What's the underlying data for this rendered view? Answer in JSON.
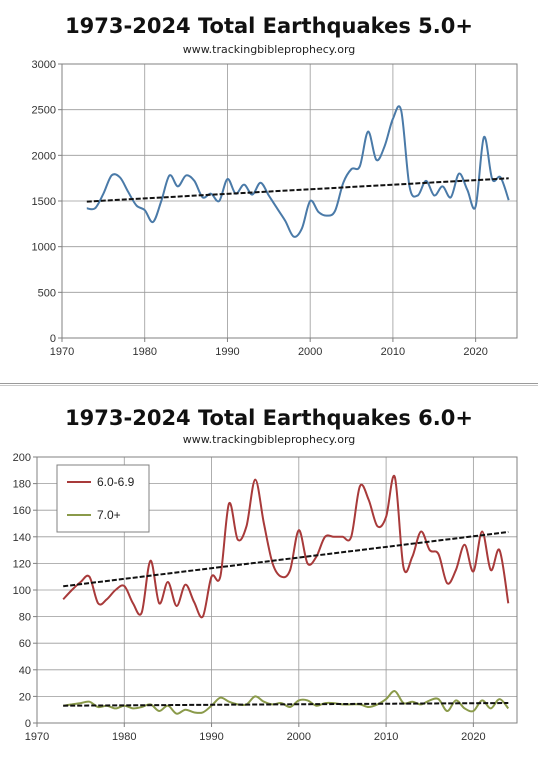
{
  "chart_data": [
    {
      "type": "line",
      "title": "1973-2024 Total Earthquakes 5.0+",
      "subtitle": "www.trackingbibleprophecy.org",
      "xlabel": "",
      "ylabel": "",
      "xlim": [
        1970,
        2025
      ],
      "ylim": [
        0,
        3000
      ],
      "xticks": [
        1970,
        1980,
        1990,
        2000,
        2010,
        2020
      ],
      "yticks": [
        0,
        500,
        1000,
        1500,
        2000,
        2500,
        3000
      ],
      "grid": true,
      "x": [
        1973,
        1974,
        1975,
        1976,
        1977,
        1978,
        1979,
        1980,
        1981,
        1982,
        1983,
        1984,
        1985,
        1986,
        1987,
        1988,
        1989,
        1990,
        1991,
        1992,
        1993,
        1994,
        1995,
        1996,
        1997,
        1998,
        1999,
        2000,
        2001,
        2002,
        2003,
        2004,
        2005,
        2006,
        2007,
        2008,
        2009,
        2010,
        2011,
        2012,
        2013,
        2014,
        2015,
        2016,
        2017,
        2018,
        2019,
        2020,
        2021,
        2022,
        2023,
        2024
      ],
      "series": [
        {
          "name": "",
          "color": "#4a7aa8",
          "values": [
            1420,
            1420,
            1580,
            1780,
            1760,
            1600,
            1450,
            1400,
            1270,
            1500,
            1780,
            1660,
            1780,
            1720,
            1540,
            1580,
            1500,
            1740,
            1580,
            1680,
            1570,
            1700,
            1560,
            1420,
            1280,
            1110,
            1200,
            1500,
            1380,
            1340,
            1390,
            1700,
            1850,
            1880,
            2260,
            1950,
            2100,
            2400,
            2490,
            1660,
            1560,
            1720,
            1560,
            1660,
            1540,
            1800,
            1620,
            1440,
            2200,
            1740,
            1760,
            1510
          ]
        },
        {
          "name": "",
          "color": "#111111",
          "dashed": true,
          "values": [
            1493,
            1498,
            1503,
            1508,
            1513,
            1518,
            1523,
            1528,
            1533,
            1538,
            1543,
            1548,
            1553,
            1558,
            1563,
            1568,
            1573,
            1578,
            1583,
            1588,
            1593,
            1598,
            1603,
            1608,
            1613,
            1618,
            1623,
            1628,
            1633,
            1638,
            1643,
            1648,
            1653,
            1658,
            1663,
            1668,
            1673,
            1678,
            1683,
            1688,
            1693,
            1698,
            1703,
            1708,
            1713,
            1718,
            1723,
            1728,
            1733,
            1738,
            1743,
            1748
          ]
        }
      ]
    },
    {
      "type": "line",
      "title": "1973-2024 Total Earthquakes 6.0+",
      "subtitle": "www.trackingbibleprophecy.org",
      "xlabel": "",
      "ylabel": "",
      "xlim": [
        1970,
        2025
      ],
      "ylim": [
        0,
        200
      ],
      "xticks": [
        1970,
        1980,
        1990,
        2000,
        2010,
        2020
      ],
      "yticks": [
        0,
        20,
        40,
        60,
        80,
        100,
        120,
        140,
        160,
        180,
        200
      ],
      "grid": true,
      "legend": "top-left",
      "x": [
        1973,
        1974,
        1975,
        1976,
        1977,
        1978,
        1979,
        1980,
        1981,
        1982,
        1983,
        1984,
        1985,
        1986,
        1987,
        1988,
        1989,
        1990,
        1991,
        1992,
        1993,
        1994,
        1995,
        1996,
        1997,
        1998,
        1999,
        2000,
        2001,
        2002,
        2003,
        2004,
        2005,
        2006,
        2007,
        2008,
        2009,
        2010,
        2011,
        2012,
        2013,
        2014,
        2015,
        2016,
        2017,
        2018,
        2019,
        2020,
        2021,
        2022,
        2023,
        2024
      ],
      "series": [
        {
          "name": "6.0-6.9",
          "color": "#a83a3a",
          "values": [
            93,
            100,
            106,
            110,
            90,
            93,
            100,
            103,
            90,
            83,
            122,
            90,
            106,
            88,
            104,
            91,
            80,
            110,
            110,
            165,
            138,
            148,
            183,
            150,
            120,
            110,
            115,
            145,
            120,
            125,
            140,
            140,
            140,
            140,
            178,
            168,
            148,
            155,
            185,
            117,
            125,
            144,
            130,
            127,
            105,
            115,
            134,
            114,
            144,
            115,
            130,
            90
          ]
        },
        {
          "name": "7.0+",
          "color": "#8a9a4a",
          "values": [
            13,
            14,
            15,
            16,
            12,
            13,
            11,
            13,
            11,
            12,
            14,
            9,
            13,
            7,
            10,
            8,
            8,
            13,
            19,
            16,
            14,
            14,
            20,
            16,
            14,
            15,
            12,
            17,
            17,
            13,
            15,
            15,
            14,
            14,
            14,
            12,
            14,
            18,
            24,
            15,
            16,
            14,
            17,
            18,
            9,
            17,
            11,
            9,
            17,
            11,
            18,
            11
          ]
        },
        {
          "name": "",
          "color": "#111111",
          "dashed": true,
          "values": [
            102.8,
            103.6,
            104.4,
            105.2,
            106.0,
            106.8,
            107.6,
            108.4,
            109.2,
            110.0,
            110.8,
            111.6,
            112.4,
            113.2,
            114.0,
            114.8,
            115.6,
            116.4,
            117.2,
            118.0,
            118.8,
            119.6,
            120.4,
            121.2,
            122.0,
            122.8,
            123.6,
            124.4,
            125.2,
            126.0,
            126.8,
            127.6,
            128.4,
            129.2,
            130.0,
            130.8,
            131.6,
            132.4,
            133.2,
            134.0,
            134.8,
            135.6,
            136.4,
            137.2,
            138.0,
            138.8,
            139.6,
            140.4,
            141.2,
            142.0,
            142.8,
            143.6
          ]
        },
        {
          "name": "",
          "color": "#111111",
          "dashed": true,
          "values": [
            13.0,
            13.04,
            13.08,
            13.12,
            13.16,
            13.2,
            13.24,
            13.28,
            13.32,
            13.36,
            13.4,
            13.44,
            13.48,
            13.52,
            13.56,
            13.6,
            13.64,
            13.68,
            13.72,
            13.76,
            13.8,
            13.84,
            13.88,
            13.92,
            13.96,
            14.0,
            14.04,
            14.08,
            14.12,
            14.16,
            14.2,
            14.24,
            14.28,
            14.32,
            14.36,
            14.4,
            14.44,
            14.48,
            14.52,
            14.56,
            14.6,
            14.64,
            14.68,
            14.72,
            14.76,
            14.8,
            14.84,
            14.88,
            14.92,
            14.96,
            15.0,
            15.04
          ]
        }
      ]
    }
  ]
}
